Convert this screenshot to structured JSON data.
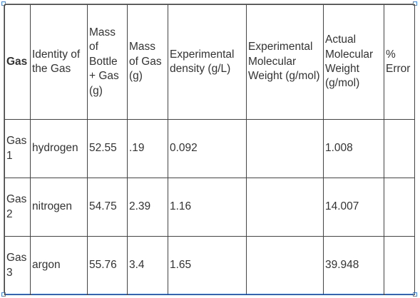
{
  "colors": {
    "selection": "#4a86e8",
    "border": "#444444",
    "text": "#333333"
  },
  "table": {
    "headers": [
      "Gas",
      "Identity of the Gas",
      "Mass of Bottle + Gas (g)",
      "Mass of Gas (g)",
      "Experimental density (g/L)",
      "Experimental Molecular Weight (g/mol)",
      "Actual Molecular Weight (g/mol)",
      "% Error"
    ],
    "rows": [
      [
        "Gas 1",
        "hydrogen",
        "52.55",
        ".19",
        "0.092",
        "",
        "1.008",
        ""
      ],
      [
        "Gas 2",
        "nitrogen",
        "54.75",
        "2.39",
        "1.16",
        "",
        "14.007",
        ""
      ],
      [
        "Gas 3",
        "argon",
        "55.76",
        "3.4",
        "1.65",
        "",
        "39.948",
        ""
      ]
    ]
  }
}
